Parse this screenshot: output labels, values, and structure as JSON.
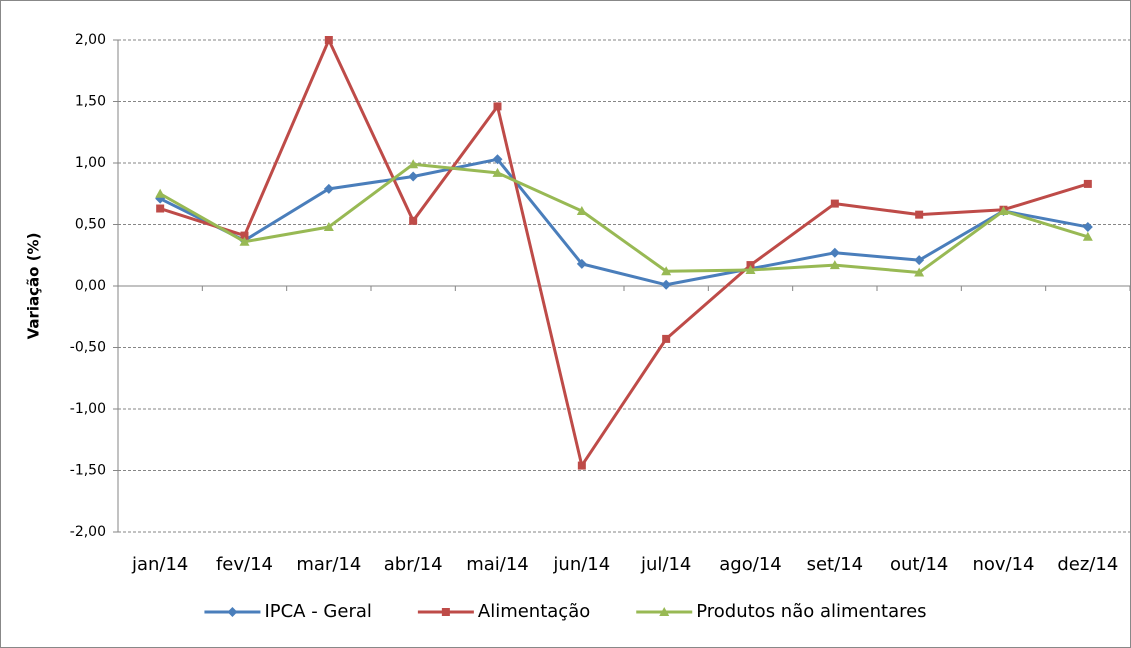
{
  "chart_data": {
    "type": "line",
    "y_label": "Variação (%)",
    "categories": [
      "jan/14",
      "fev/14",
      "mar/14",
      "abr/14",
      "mai/14",
      "jun/14",
      "jul/14",
      "ago/14",
      "set/14",
      "out/14",
      "nov/14",
      "dez/14"
    ],
    "series": [
      {
        "name": "IPCA - Geral",
        "color": "#4a7ebb",
        "marker": "diamond",
        "values": [
          0.71,
          0.37,
          0.79,
          0.89,
          1.03,
          0.18,
          0.01,
          0.14,
          0.27,
          0.21,
          0.61,
          0.48
        ]
      },
      {
        "name": "Alimentação",
        "color": "#be4b48",
        "marker": "square",
        "values": [
          0.63,
          0.41,
          2.0,
          0.53,
          1.46,
          -1.46,
          -0.43,
          0.17,
          0.67,
          0.58,
          0.62,
          0.83
        ]
      },
      {
        "name": "Produtos não alimentares",
        "color": "#98b954",
        "marker": "triangle",
        "values": [
          0.75,
          0.36,
          0.48,
          0.99,
          0.92,
          0.61,
          0.12,
          0.13,
          0.17,
          0.11,
          0.61,
          0.4
        ]
      }
    ],
    "ylim": [
      -2,
      2
    ],
    "yticks": [
      {
        "value": -2,
        "label": "-2,00"
      },
      {
        "value": -1.5,
        "label": "-1,50"
      },
      {
        "value": -1,
        "label": "-1,00"
      },
      {
        "value": -0.5,
        "label": "-0,50"
      },
      {
        "value": 0,
        "label": "0,00"
      },
      {
        "value": 0.5,
        "label": "0,50"
      },
      {
        "value": 1,
        "label": "1,00"
      },
      {
        "value": 1.5,
        "label": "1,50"
      },
      {
        "value": 2,
        "label": "2,00"
      }
    ],
    "grid": true,
    "legend": "bottom"
  }
}
